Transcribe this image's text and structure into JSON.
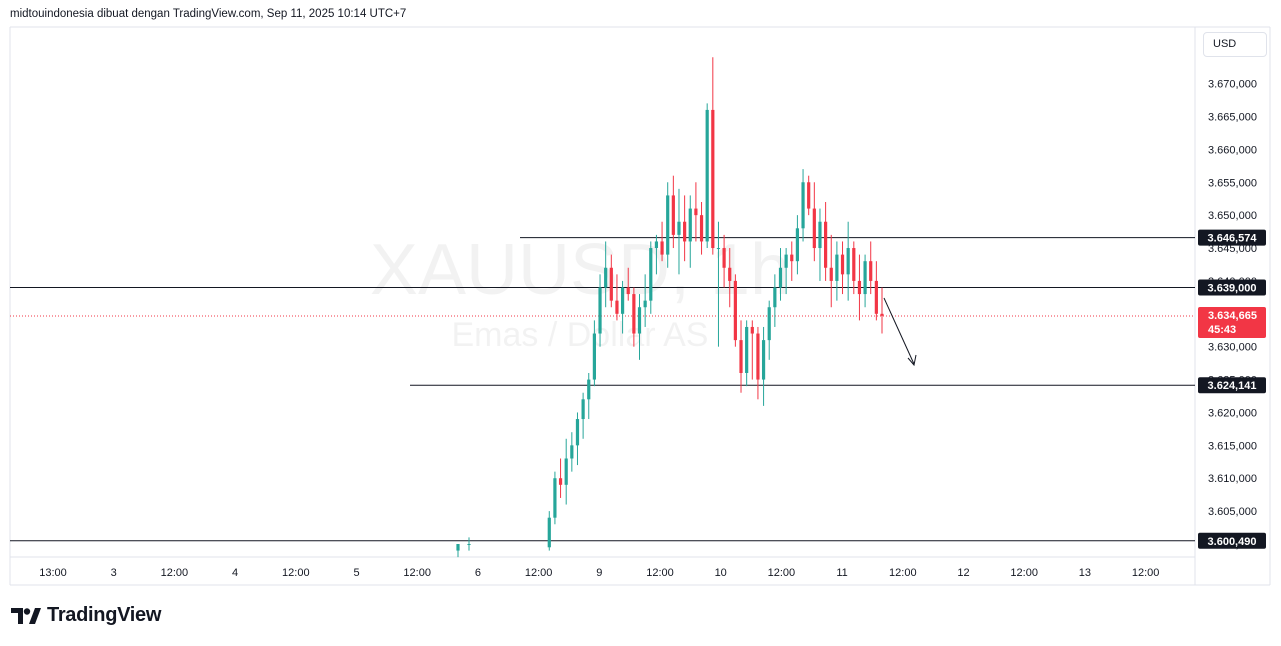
{
  "header": {
    "attribution": "midtouindonesia dibuat dengan TradingView.com, Sep 11, 2025 10:14 UTC+7"
  },
  "currency": "USD",
  "watermark": {
    "symbol": "XAUUSD, 1h",
    "description": "Emas / Dollar AS"
  },
  "brand": {
    "name": "TradingView"
  },
  "colors": {
    "up": "#26a69a",
    "down": "#f23645",
    "line": "#131722",
    "current": "#f23645"
  },
  "chart_data": {
    "type": "candlestick",
    "y_ticks": [
      "3.600,000",
      "3.605,000",
      "3.610,000",
      "3.615,000",
      "3.620,000",
      "3.625,000",
      "3.630,000",
      "3.635,000",
      "3.640,000",
      "3.645,000",
      "3.650,000",
      "3.655,000",
      "3.660,000",
      "3.665,000",
      "3.670,000"
    ],
    "y_tick_values": [
      3600,
      3605,
      3610,
      3615,
      3620,
      3625,
      3630,
      3635,
      3640,
      3645,
      3650,
      3655,
      3660,
      3665,
      3670
    ],
    "x_ticks": [
      "13:00",
      "3",
      "12:00",
      "4",
      "12:00",
      "5",
      "12:00",
      "6",
      "12:00",
      "9",
      "12:00",
      "10",
      "12:00",
      "11",
      "12:00",
      "12",
      "12:00",
      "13",
      "12:00"
    ],
    "levels": [
      {
        "label": "3.646,574",
        "value": 3646.574
      },
      {
        "label": "3.639,000",
        "value": 3639.0
      },
      {
        "label": "3.624,141",
        "value": 3624.141
      },
      {
        "label": "3.600,490",
        "value": 3600.49
      }
    ],
    "current_price": {
      "label": "3.634,665",
      "value": 3634.665,
      "countdown": "45:43"
    },
    "candles": [
      [
        3599,
        3600,
        3598,
        3600
      ],
      [
        3600,
        3601,
        3599,
        3600
      ],
      [
        3599.5,
        3605,
        3599,
        3604
      ],
      [
        3604,
        3611,
        3603,
        3610
      ],
      [
        3610,
        3613,
        3607,
        3609
      ],
      [
        3609,
        3616,
        3606,
        3613
      ],
      [
        3613,
        3617,
        3611,
        3615
      ],
      [
        3615,
        3620,
        3612,
        3619
      ],
      [
        3619,
        3623,
        3616,
        3622
      ],
      [
        3622,
        3626,
        3619,
        3625
      ],
      [
        3625,
        3634,
        3624,
        3632
      ],
      [
        3632,
        3641,
        3630,
        3639
      ],
      [
        3639,
        3646,
        3636,
        3642
      ],
      [
        3642,
        3644,
        3636,
        3637
      ],
      [
        3637,
        3641,
        3634,
        3635
      ],
      [
        3635,
        3640,
        3632,
        3639
      ],
      [
        3639,
        3642,
        3637,
        3638
      ],
      [
        3638,
        3639,
        3630,
        3632
      ],
      [
        3632,
        3638,
        3628,
        3636
      ],
      [
        3636,
        3641,
        3633,
        3637
      ],
      [
        3637,
        3646,
        3635,
        3645
      ],
      [
        3645,
        3647,
        3641,
        3646
      ],
      [
        3646,
        3649,
        3643,
        3644
      ],
      [
        3644,
        3655,
        3642,
        3653
      ],
      [
        3653,
        3656,
        3645,
        3647
      ],
      [
        3647,
        3654,
        3641,
        3649
      ],
      [
        3649,
        3653,
        3643,
        3646
      ],
      [
        3646,
        3653,
        3642,
        3651
      ],
      [
        3651,
        3655,
        3646,
        3650
      ],
      [
        3650,
        3652,
        3644,
        3646
      ],
      [
        3646,
        3667,
        3645,
        3666
      ],
      [
        3666,
        3674,
        3644,
        3645
      ],
      [
        3645,
        3649,
        3630,
        3645
      ],
      [
        3645,
        3647,
        3639,
        3642
      ],
      [
        3642,
        3645,
        3636,
        3640
      ],
      [
        3640,
        3641,
        3630,
        3631
      ],
      [
        3631,
        3634,
        3623,
        3626
      ],
      [
        3626,
        3634,
        3624,
        3633
      ],
      [
        3633,
        3634,
        3625,
        3632
      ],
      [
        3632,
        3633,
        3622,
        3625
      ],
      [
        3625,
        3633,
        3621,
        3631
      ],
      [
        3631,
        3637,
        3628,
        3636
      ],
      [
        3636,
        3641,
        3633,
        3639
      ],
      [
        3639,
        3645,
        3637,
        3642
      ],
      [
        3642,
        3645,
        3638,
        3644
      ],
      [
        3644,
        3646,
        3640,
        3643
      ],
      [
        3643,
        3650,
        3641,
        3648
      ],
      [
        3648,
        3657,
        3646,
        3655
      ],
      [
        3655,
        3656,
        3650,
        3651
      ],
      [
        3651,
        3655,
        3643,
        3645
      ],
      [
        3645,
        3651,
        3640,
        3649
      ],
      [
        3649,
        3652,
        3640,
        3642
      ],
      [
        3642,
        3647,
        3636,
        3640
      ],
      [
        3640,
        3646,
        3637,
        3644
      ],
      [
        3644,
        3646,
        3638,
        3641
      ],
      [
        3641,
        3649,
        3637,
        3645
      ],
      [
        3645,
        3646,
        3638,
        3640
      ],
      [
        3640,
        3644,
        3634,
        3638
      ],
      [
        3638,
        3644,
        3636,
        3643
      ],
      [
        3643,
        3646,
        3638,
        3640
      ],
      [
        3640,
        3643,
        3634,
        3635
      ],
      [
        3635,
        3639,
        3632,
        3634.7
      ]
    ],
    "annotation": {
      "type": "arrow",
      "direction": "down"
    }
  }
}
